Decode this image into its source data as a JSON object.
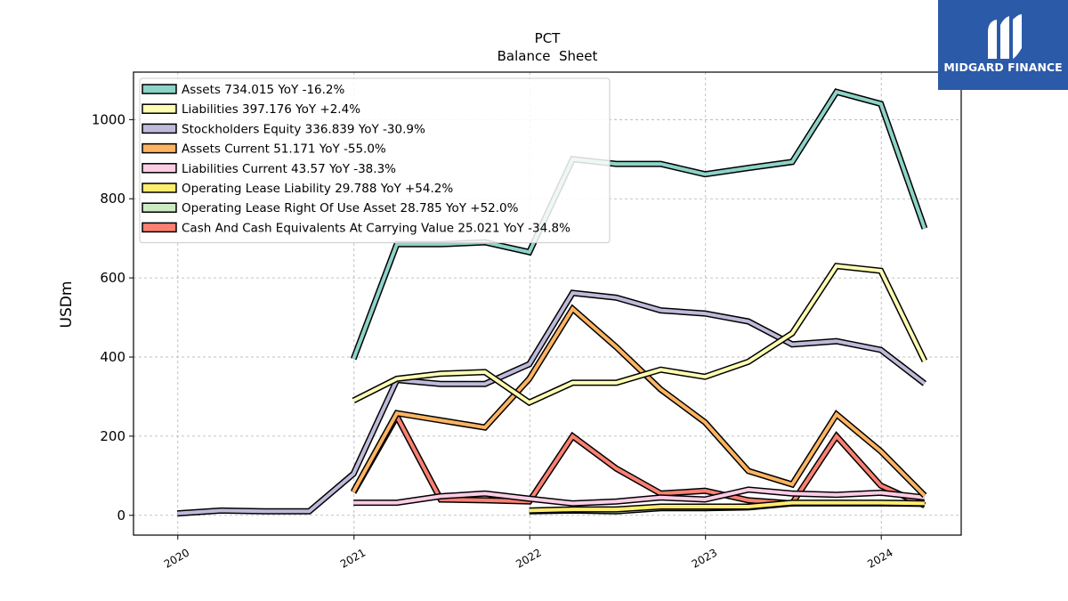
{
  "logo": {
    "text": "MIDGARD FINANCE"
  },
  "chart_data": {
    "type": "line",
    "title": "PCT",
    "subtitle": "Balance  Sheet",
    "xlabel": "",
    "ylabel": "USDm",
    "xlim": [
      "2019-10-01",
      "2024-06-15"
    ],
    "ylim": [
      -50,
      1120
    ],
    "x_ticks": [
      "2020",
      "2021",
      "2022",
      "2023",
      "2024"
    ],
    "y_ticks": [
      0,
      200,
      400,
      600,
      800,
      1000
    ],
    "grid": true,
    "legend_position": "top-left",
    "series": [
      {
        "name": "Assets",
        "legend": "Assets  734.015 YoY -16.2%",
        "color": "#8dd3c7",
        "points": [
          [
            "2020-12-31",
            395
          ],
          [
            "2021-03-31",
            685
          ],
          [
            "2021-06-30",
            685
          ],
          [
            "2021-09-30",
            690
          ],
          [
            "2021-12-31",
            665
          ],
          [
            "2022-03-31",
            900
          ],
          [
            "2022-06-30",
            888
          ],
          [
            "2022-09-30",
            888
          ],
          [
            "2022-12-31",
            862
          ],
          [
            "2023-03-31",
            878
          ],
          [
            "2023-06-30",
            893
          ],
          [
            "2023-09-30",
            1070
          ],
          [
            "2023-12-31",
            1040
          ],
          [
            "2024-03-31",
            725
          ]
        ]
      },
      {
        "name": "Liabilities",
        "legend": "Liabilities  397.176 YoY +2.4%",
        "color": "#ffffb3",
        "points": [
          [
            "2020-12-31",
            290
          ],
          [
            "2021-03-31",
            345
          ],
          [
            "2021-06-30",
            358
          ],
          [
            "2021-09-30",
            362
          ],
          [
            "2021-12-31",
            285
          ],
          [
            "2022-03-31",
            335
          ],
          [
            "2022-06-30",
            335
          ],
          [
            "2022-09-30",
            368
          ],
          [
            "2022-12-31",
            350
          ],
          [
            "2023-03-31",
            388
          ],
          [
            "2023-06-30",
            460
          ],
          [
            "2023-09-30",
            630
          ],
          [
            "2023-12-31",
            618
          ],
          [
            "2024-03-31",
            390
          ]
        ]
      },
      {
        "name": "Stockholders Equity",
        "legend": "Stockholders Equity  336.839 YoY -30.9%",
        "color": "#bebada",
        "points": [
          [
            "2019-12-31",
            5
          ],
          [
            "2020-03-31",
            12
          ],
          [
            "2020-06-30",
            10
          ],
          [
            "2020-09-30",
            10
          ],
          [
            "2020-12-31",
            105
          ],
          [
            "2021-03-31",
            342
          ],
          [
            "2021-06-30",
            332
          ],
          [
            "2021-09-30",
            332
          ],
          [
            "2021-12-31",
            382
          ],
          [
            "2022-03-31",
            562
          ],
          [
            "2022-06-30",
            550
          ],
          [
            "2022-09-30",
            518
          ],
          [
            "2022-12-31",
            510
          ],
          [
            "2023-03-31",
            490
          ],
          [
            "2023-06-30",
            432
          ],
          [
            "2023-09-30",
            440
          ],
          [
            "2023-12-31",
            418
          ],
          [
            "2024-03-31",
            333
          ]
        ]
      },
      {
        "name": "Assets Current",
        "legend": "Assets Current  51.171 YoY -55.0%",
        "color": "#fdb462",
        "points": [
          [
            "2020-12-31",
            60
          ],
          [
            "2021-03-31",
            258
          ],
          [
            "2021-06-30",
            240
          ],
          [
            "2021-09-30",
            222
          ],
          [
            "2021-12-31",
            345
          ],
          [
            "2022-03-31",
            522
          ],
          [
            "2022-06-30",
            425
          ],
          [
            "2022-09-30",
            318
          ],
          [
            "2022-12-31",
            235
          ],
          [
            "2023-03-31",
            112
          ],
          [
            "2023-06-30",
            78
          ],
          [
            "2023-09-30",
            255
          ],
          [
            "2023-12-31",
            162
          ],
          [
            "2024-03-31",
            50
          ]
        ]
      },
      {
        "name": "Liabilities Current",
        "legend": "Liabilities Current  43.57 YoY -38.3%",
        "color": "#fccde5",
        "points": [
          [
            "2020-12-31",
            32
          ],
          [
            "2021-03-31",
            32
          ],
          [
            "2021-06-30",
            48
          ],
          [
            "2021-09-30",
            55
          ],
          [
            "2021-12-31",
            42
          ],
          [
            "2022-03-31",
            30
          ],
          [
            "2022-06-30",
            35
          ],
          [
            "2022-09-30",
            45
          ],
          [
            "2022-12-31",
            40
          ],
          [
            "2023-03-31",
            65
          ],
          [
            "2023-06-30",
            55
          ],
          [
            "2023-09-30",
            52
          ],
          [
            "2023-12-31",
            57
          ],
          [
            "2024-03-31",
            45
          ]
        ]
      },
      {
        "name": "Operating Lease Liability",
        "legend": "Operating Lease Liability  29.788 YoY +54.2%",
        "color": "#ffed6f",
        "points": [
          [
            "2021-12-31",
            12
          ],
          [
            "2022-03-31",
            15
          ],
          [
            "2022-06-30",
            15
          ],
          [
            "2022-09-30",
            22
          ],
          [
            "2022-12-31",
            22
          ],
          [
            "2023-03-31",
            22
          ],
          [
            "2023-06-30",
            32
          ],
          [
            "2023-09-30",
            32
          ],
          [
            "2023-12-31",
            32
          ],
          [
            "2024-03-31",
            30
          ]
        ]
      },
      {
        "name": "Operating Lease Right Of Use Asset",
        "legend": "Operating Lease Right Of Use Asset  28.785 YoY +52.0%",
        "color": "#ccebc5",
        "points": [
          [
            "2021-12-31",
            10
          ],
          [
            "2022-03-31",
            12
          ],
          [
            "2022-06-30",
            10
          ],
          [
            "2022-09-30",
            18
          ],
          [
            "2022-12-31",
            18
          ],
          [
            "2023-03-31",
            20
          ],
          [
            "2023-06-30",
            30
          ],
          [
            "2023-09-30",
            30
          ],
          [
            "2023-12-31",
            30
          ],
          [
            "2024-03-31",
            29
          ]
        ]
      },
      {
        "name": "Cash And Cash Equivalents At Carrying Value",
        "legend": "Cash And Cash Equivalents At Carrying Value  25.021 YoY -34.8%",
        "color": "#fb8072",
        "points": [
          [
            "2020-12-31",
            58
          ],
          [
            "2021-03-31",
            250
          ],
          [
            "2021-06-30",
            40
          ],
          [
            "2021-09-30",
            38
          ],
          [
            "2021-12-31",
            35
          ],
          [
            "2022-03-31",
            200
          ],
          [
            "2022-06-30",
            118
          ],
          [
            "2022-09-30",
            55
          ],
          [
            "2022-12-31",
            62
          ],
          [
            "2023-03-31",
            38
          ],
          [
            "2023-06-30",
            30
          ],
          [
            "2023-09-30",
            200
          ],
          [
            "2023-12-31",
            75
          ],
          [
            "2024-03-31",
            25
          ]
        ]
      }
    ]
  }
}
